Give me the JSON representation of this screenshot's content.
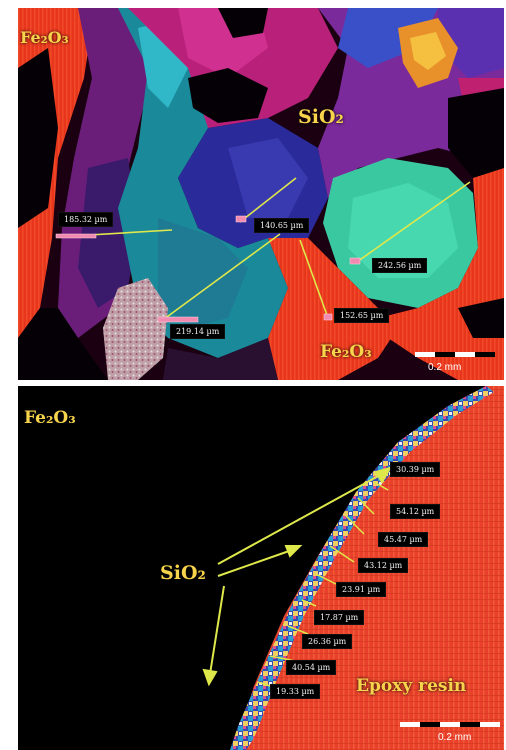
{
  "colors": {
    "label": "#f7d44b",
    "arrow": "#dfe84a",
    "hematite": "#e8361c",
    "matrix": "#120008",
    "epoxy": "#e8402a"
  },
  "top_panel": {
    "labels": {
      "fe2o3_top_left": "Fe₂O₃",
      "sio2": "SiO₂",
      "fe2o3_bottom": "Fe₂O₃"
    },
    "measurements": [
      "185.32 µm",
      "140.65 µm",
      "242.56 µm",
      "219.14 µm",
      "152.65 µm"
    ],
    "scale_bar": "0.2 mm"
  },
  "bottom_panel": {
    "labels": {
      "fe2o3": "Fe₂O₃",
      "sio2": "SiO₂",
      "epoxy": "Epoxy resin"
    },
    "measurements": [
      "30.39 µm",
      "54.12 µm",
      "45.47 µm",
      "43.12 µm",
      "23.91 µm",
      "17.87 µm",
      "26.36 µm",
      "40.54 µm",
      "19.33 µm"
    ],
    "scale_bar": "0.2 mm"
  }
}
